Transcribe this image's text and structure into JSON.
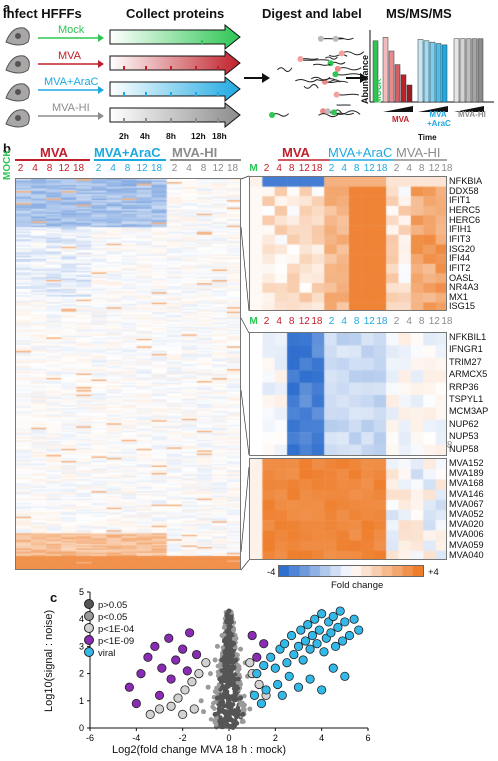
{
  "panel_a": {
    "letter": "a",
    "stage_titles": [
      "Infect HFFFs",
      "Collect proteins",
      "Digest and label",
      "MS/MS/MS"
    ],
    "conditions": [
      {
        "label": "Mock",
        "color": "#2dc653"
      },
      {
        "label": "MVA",
        "color": "#c0202a"
      },
      {
        "label": "MVA+AraC",
        "color": "#1fa9e1"
      },
      {
        "label": "MVA-HI",
        "color": "#8c8c8c"
      }
    ],
    "timepoints": [
      "2h",
      "4h",
      "8h",
      "12h",
      "18h"
    ],
    "ms_ylabel": "Abundance",
    "ms_xlabel": "Time",
    "ms_groups": [
      {
        "label": "MOCK",
        "color": "#2dc653"
      },
      {
        "label": "MVA",
        "color": "#c0202a"
      },
      {
        "label": "MVA +AraC",
        "color": "#1fa9e1"
      },
      {
        "label": "MVA-HI",
        "color": "#8c8c8c"
      }
    ],
    "ms_bars": {
      "mock": 0.9,
      "mva": [
        0.95,
        0.75,
        0.55,
        0.4,
        0.25
      ],
      "mva_arac": [
        0.92,
        0.9,
        0.88,
        0.86,
        0.84
      ],
      "mva_hi": [
        0.93,
        0.93,
        0.93,
        0.93,
        0.93
      ]
    }
  },
  "panel_b": {
    "letter": "b",
    "mock_label": "MOCK",
    "groups": [
      {
        "label": "MVA",
        "color": "#c0202a"
      },
      {
        "label": "MVA+AraC",
        "color": "#1fa9e1"
      },
      {
        "label": "MVA-HI",
        "color": "#8c8c8c"
      }
    ],
    "timepoints": [
      "2",
      "4",
      "8",
      "12",
      "18"
    ],
    "m_label": "M",
    "legend": {
      "min": "-4",
      "max": "+4",
      "title": "Fold change"
    },
    "cluster_genes": [
      [
        "NFKBIA",
        "DDX58",
        "IFIT1",
        "HERC5",
        "HERC6",
        "IFIH1",
        "IFIT3",
        "ISG20",
        "IFI44",
        "IFIT2",
        "OASL",
        "NR4A3",
        "MX1",
        "ISG15"
      ],
      [
        "NFKBIL1",
        "IFNGR1",
        "TRIM27",
        "ARMCX5",
        "RRP36",
        "TSPYL1",
        "MCM3AP",
        "NUP62",
        "NUP53",
        "NUP58"
      ],
      [
        "MVA152",
        "MVA189",
        "MVA168",
        "MVA146",
        "MVA067",
        "MVA052",
        "MVA020",
        "MVA006",
        "MVA059",
        "MVA040"
      ]
    ],
    "colors": {
      "low": "#2f6fce",
      "mid": "#ffffff",
      "high": "#ee7e2c"
    }
  },
  "panel_c": {
    "letter": "c",
    "legend": [
      {
        "label": "p>0.05",
        "color": "#555555"
      },
      {
        "label": "p<0.05",
        "color": "#9a9a9a"
      },
      {
        "label": "p<1E-04",
        "color": "#d2d2d2"
      },
      {
        "label": "p<1E-09",
        "color": "#8a2bb5"
      },
      {
        "label": "viral",
        "color": "#33b8e8"
      }
    ],
    "chart_data": {
      "type": "scatter",
      "xlabel": "Log2(fold change MVA 18 h : mock)",
      "ylabel": "Log10(signal : noise)",
      "xlim": [
        -6,
        6
      ],
      "ylim": [
        0,
        5
      ],
      "x_ticks": [
        "-6",
        "-4",
        "-2",
        "0",
        "2",
        "4",
        "6"
      ],
      "y_ticks": [
        "0",
        "1",
        "2",
        "3",
        "4",
        "5"
      ],
      "series": [
        {
          "name": "viral",
          "points": [
            [
              1.2,
              2.0
            ],
            [
              1.5,
              2.3
            ],
            [
              1.8,
              2.6
            ],
            [
              2.0,
              2.2
            ],
            [
              2.2,
              2.9
            ],
            [
              2.4,
              3.1
            ],
            [
              2.5,
              2.4
            ],
            [
              2.7,
              3.4
            ],
            [
              2.8,
              2.7
            ],
            [
              3.0,
              3.0
            ],
            [
              3.1,
              3.6
            ],
            [
              3.2,
              2.5
            ],
            [
              3.3,
              3.2
            ],
            [
              3.4,
              3.8
            ],
            [
              3.5,
              2.9
            ],
            [
              3.6,
              3.4
            ],
            [
              3.7,
              4.0
            ],
            [
              3.8,
              3.1
            ],
            [
              3.9,
              3.6
            ],
            [
              4.0,
              4.2
            ],
            [
              4.1,
              2.8
            ],
            [
              4.2,
              3.3
            ],
            [
              4.3,
              3.9
            ],
            [
              4.4,
              3.5
            ],
            [
              4.5,
              4.1
            ],
            [
              4.6,
              3.0
            ],
            [
              4.7,
              3.7
            ],
            [
              4.8,
              4.3
            ],
            [
              4.9,
              3.2
            ],
            [
              5.0,
              3.9
            ],
            [
              5.2,
              3.4
            ],
            [
              5.4,
              4.0
            ],
            [
              5.6,
              3.6
            ],
            [
              2.1,
              1.6
            ],
            [
              2.6,
              1.9
            ],
            [
              3.0,
              1.5
            ],
            [
              3.5,
              1.8
            ],
            [
              4.0,
              1.4
            ],
            [
              4.5,
              2.2
            ],
            [
              5.0,
              1.9
            ],
            [
              2.3,
              1.2
            ],
            [
              1.6,
              1.4
            ],
            [
              1.1,
              1.2
            ],
            [
              1.4,
              0.9
            ]
          ]
        },
        {
          "name": "p<1E-09",
          "points": [
            [
              -4.3,
              1.5
            ],
            [
              -3.8,
              2.0
            ],
            [
              -3.5,
              2.6
            ],
            [
              -3.2,
              3.0
            ],
            [
              -2.9,
              2.2
            ],
            [
              -2.6,
              3.3
            ],
            [
              -2.3,
              2.5
            ],
            [
              -2.0,
              2.9
            ],
            [
              -1.7,
              3.5
            ],
            [
              -1.4,
              2.7
            ],
            [
              1.2,
              2.6
            ],
            [
              1.5,
              3.1
            ],
            [
              1.0,
              3.4
            ],
            [
              -3.0,
              1.2
            ],
            [
              -2.5,
              1.8
            ],
            [
              -1.8,
              2.1
            ],
            [
              -4.0,
              0.9
            ]
          ]
        },
        {
          "name": "p<1E-04",
          "points": [
            [
              -2.5,
              0.8
            ],
            [
              -2.2,
              1.1
            ],
            [
              -1.9,
              1.4
            ],
            [
              -1.6,
              1.7
            ],
            [
              -1.3,
              2.0
            ],
            [
              -1.0,
              2.4
            ],
            [
              -3.0,
              0.7
            ],
            [
              -3.4,
              0.5
            ],
            [
              1.0,
              2.0
            ],
            [
              1.3,
              1.6
            ],
            [
              1.6,
              1.2
            ],
            [
              0.9,
              2.4
            ],
            [
              -1.5,
              0.7
            ],
            [
              -2.0,
              0.5
            ]
          ]
        },
        {
          "name": "p<0.05",
          "points": [
            [
              -1.2,
              1.0
            ],
            [
              -0.9,
              1.5
            ],
            [
              -0.8,
              2.0
            ],
            [
              -0.6,
              2.5
            ],
            [
              -0.5,
              3.0
            ],
            [
              -0.3,
              3.4
            ],
            [
              0.3,
              3.3
            ],
            [
              0.5,
              2.9
            ],
            [
              0.7,
              2.4
            ],
            [
              0.8,
              1.9
            ],
            [
              1.0,
              1.3
            ],
            [
              -1.1,
              0.6
            ],
            [
              0.9,
              0.7
            ],
            [
              -0.2,
              3.7
            ],
            [
              0.2,
              3.6
            ]
          ]
        },
        {
          "name": "p>0.05",
          "points": [
            [
              0.0,
              4.3
            ],
            [
              -0.1,
              3.9
            ],
            [
              0.1,
              3.9
            ],
            [
              -0.2,
              3.2
            ],
            [
              0.2,
              3.1
            ],
            [
              -0.3,
              2.5
            ],
            [
              0.3,
              2.5
            ],
            [
              -0.4,
              1.8
            ],
            [
              0.4,
              1.8
            ],
            [
              -0.5,
              1.1
            ],
            [
              0.5,
              1.1
            ],
            [
              -0.6,
              0.5
            ],
            [
              0.6,
              0.5
            ],
            [
              0.0,
              3.0
            ],
            [
              0.0,
              2.0
            ],
            [
              0.0,
              1.0
            ],
            [
              0.0,
              0.4
            ],
            [
              -0.2,
              2.6
            ],
            [
              0.2,
              2.2
            ],
            [
              -0.1,
              1.5
            ],
            [
              0.1,
              0.8
            ]
          ]
        }
      ]
    }
  }
}
